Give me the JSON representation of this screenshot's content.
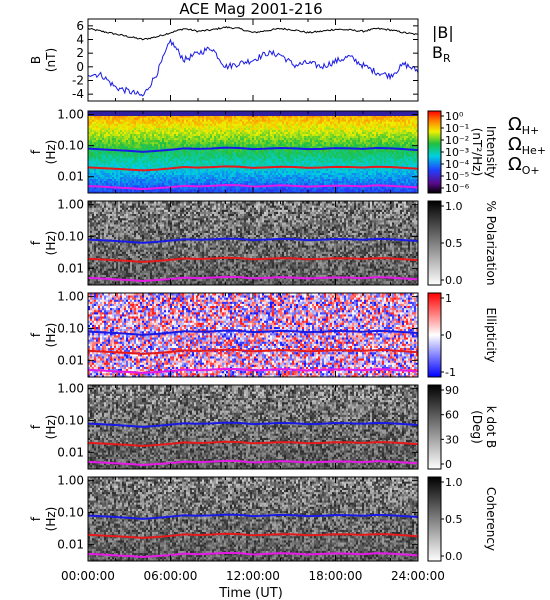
{
  "chart_data": {
    "type": "line",
    "title": "ACE Mag 2001-216",
    "xlabel": "Time (UT)",
    "x_ticks": [
      "00:00:00",
      "06:00:00",
      "12:00:00",
      "18:00:00",
      "24:00:00"
    ],
    "x_range_hours": [
      0,
      24
    ],
    "panels": [
      {
        "kind": "line",
        "ylabel": "B",
        "yunit": "(nT)",
        "ylim": [
          -5,
          7
        ],
        "yticks": [
          "6",
          "4",
          "2",
          "0",
          "-2",
          "-4"
        ],
        "legend": [
          {
            "label": "|B|",
            "color": "#000000"
          },
          {
            "label": "B",
            "sub": "R",
            "color": "#1a1ae6"
          }
        ],
        "series": [
          {
            "name": "|B|",
            "color": "#000000",
            "x": [
              0,
              1,
              2,
              3,
              4,
              5,
              6,
              7,
              8,
              9,
              10,
              11,
              12,
              13,
              14,
              15,
              16,
              17,
              18,
              19,
              20,
              21,
              22,
              23,
              24
            ],
            "y": [
              5.6,
              5.2,
              4.8,
              4.4,
              4.0,
              4.4,
              5.0,
              5.6,
              5.2,
              5.4,
              5.8,
              5.6,
              5.0,
              5.3,
              5.6,
              5.4,
              5.0,
              5.2,
              5.5,
              5.4,
              5.2,
              5.6,
              5.4,
              5.0,
              4.7
            ]
          },
          {
            "name": "B_R",
            "color": "#1a1ae6",
            "x": [
              0,
              1,
              2,
              3,
              4,
              5,
              6,
              7,
              8,
              9,
              10,
              11,
              12,
              13,
              14,
              15,
              16,
              17,
              18,
              19,
              20,
              21,
              22,
              23,
              24
            ],
            "y": [
              -1.0,
              -1.2,
              -3.0,
              -3.6,
              -4.3,
              -1.0,
              3.8,
              1.0,
              2.0,
              2.8,
              0.0,
              0.5,
              1.0,
              2.0,
              1.8,
              0.2,
              0.6,
              0.0,
              0.8,
              1.5,
              0.2,
              -0.8,
              -1.3,
              0.4,
              -0.6
            ]
          }
        ]
      },
      {
        "kind": "spectrogram",
        "colormap": "rainbow",
        "ylabel": "f",
        "yunit": "(Hz)",
        "yticks": [
          "1.00",
          "0.10",
          "0.01"
        ],
        "colorbar": {
          "title": "Intensity",
          "unit": "(nT²/Hz)",
          "labels": [
            "10⁰",
            "10⁻¹",
            "10⁻²",
            "10⁻³",
            "10⁻⁴",
            "10⁻⁵",
            "10⁻⁶"
          ]
        },
        "freq_legend": [
          {
            "symbol": "Ω",
            "sub": "H+",
            "color": "#1a1ae6"
          },
          {
            "symbol": "Ω",
            "sub": "He+",
            "color": "#e61a1a"
          },
          {
            "symbol": "Ω",
            "sub": "O+",
            "color": "#e61ae6"
          }
        ]
      },
      {
        "kind": "spectrogram",
        "colormap": "gray",
        "ylabel": "f",
        "yunit": "(Hz)",
        "yticks": [
          "1.00",
          "0.10",
          "0.01"
        ],
        "colorbar": {
          "title": "% Polarization",
          "labels": [
            "1.0",
            "0.5",
            "0.0"
          ]
        }
      },
      {
        "kind": "spectrogram",
        "colormap": "bwr",
        "ylabel": "f",
        "yunit": "(Hz)",
        "yticks": [
          "1.00",
          "0.10",
          "0.01"
        ],
        "colorbar": {
          "title": "Ellipticity",
          "labels": [
            "1",
            "0",
            "-1"
          ]
        }
      },
      {
        "kind": "spectrogram",
        "colormap": "gray",
        "ylabel": "f",
        "yunit": "(Hz)",
        "yticks": [
          "1.00",
          "0.10",
          "0.01"
        ],
        "colorbar": {
          "title": "k dot B",
          "unit": "(Deg)",
          "labels": [
            "90",
            "60",
            "30",
            "0"
          ]
        }
      },
      {
        "kind": "spectrogram",
        "colormap": "gray",
        "ylabel": "f",
        "yunit": "(Hz)",
        "yticks": [
          "1.00",
          "0.10",
          "0.01"
        ],
        "colorbar": {
          "title": "Coherency",
          "labels": [
            "1.0",
            "0.5",
            "0.0"
          ]
        }
      }
    ],
    "gyrofrequency_lines": {
      "x": [
        0,
        1,
        2,
        3,
        4,
        5,
        6,
        7,
        8,
        9,
        10,
        11,
        12,
        13,
        14,
        15,
        16,
        17,
        18,
        19,
        20,
        21,
        22,
        23,
        24
      ],
      "H+": [
        0.08,
        0.076,
        0.072,
        0.068,
        0.063,
        0.068,
        0.074,
        0.082,
        0.079,
        0.081,
        0.086,
        0.084,
        0.077,
        0.08,
        0.084,
        0.082,
        0.077,
        0.079,
        0.083,
        0.082,
        0.079,
        0.084,
        0.082,
        0.077,
        0.072
      ],
      "He+": [
        0.02,
        0.019,
        0.018,
        0.017,
        0.016,
        0.017,
        0.0185,
        0.0205,
        0.0197,
        0.0203,
        0.0215,
        0.021,
        0.0193,
        0.02,
        0.021,
        0.0205,
        0.0193,
        0.0198,
        0.0208,
        0.0205,
        0.0198,
        0.021,
        0.0205,
        0.0193,
        0.018
      ],
      "O+": [
        0.005,
        0.0048,
        0.0045,
        0.0043,
        0.004,
        0.0043,
        0.0046,
        0.0051,
        0.0049,
        0.0051,
        0.0054,
        0.0053,
        0.0048,
        0.005,
        0.0053,
        0.0051,
        0.0048,
        0.005,
        0.0052,
        0.0051,
        0.0049,
        0.0053,
        0.0051,
        0.0048,
        0.0045
      ]
    }
  }
}
